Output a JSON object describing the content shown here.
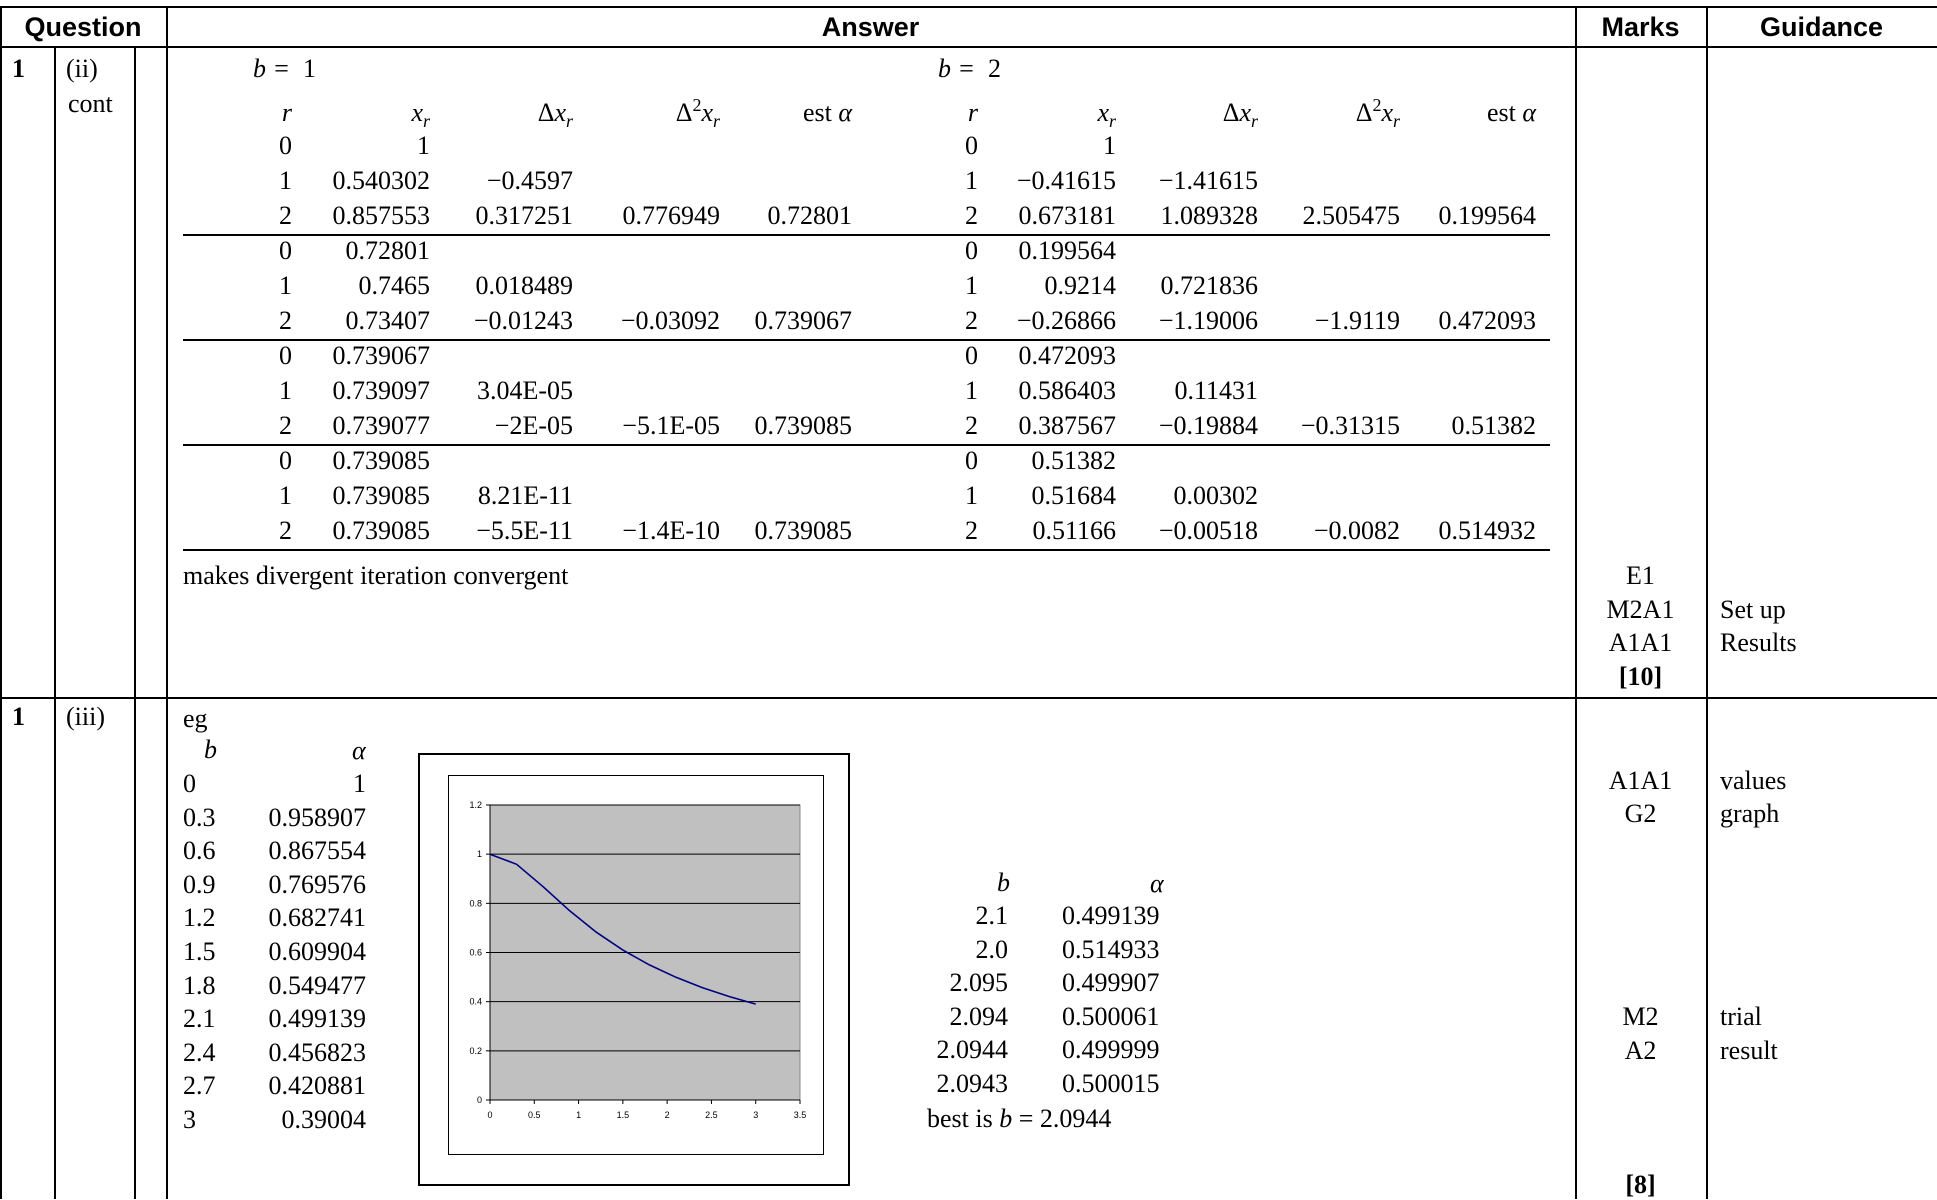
{
  "headers": {
    "question": "Question",
    "answer": "Answer",
    "marks": "Marks",
    "guidance": "Guidance"
  },
  "part_ii": {
    "qnum": "1",
    "part": "(ii)",
    "cont": "cont",
    "left": {
      "b_label": "b =",
      "b_value": "1",
      "cols": [
        "r",
        "x",
        "Δx",
        "Δ2x",
        "est α"
      ],
      "blocks": [
        [
          [
            "0",
            "1",
            "",
            "",
            ""
          ],
          [
            "1",
            "0.540302",
            "−0.4597",
            "",
            ""
          ],
          [
            "2",
            "0.857553",
            "0.317251",
            "0.776949",
            "0.72801"
          ]
        ],
        [
          [
            "0",
            "0.72801",
            "",
            "",
            ""
          ],
          [
            "1",
            "0.7465",
            "0.018489",
            "",
            ""
          ],
          [
            "2",
            "0.73407",
            "−0.01243",
            "−0.03092",
            "0.739067"
          ]
        ],
        [
          [
            "0",
            "0.739067",
            "",
            "",
            ""
          ],
          [
            "1",
            "0.739097",
            "3.04E-05",
            "",
            ""
          ],
          [
            "2",
            "0.739077",
            "−2E-05",
            "−5.1E-05",
            "0.739085"
          ]
        ],
        [
          [
            "0",
            "0.739085",
            "",
            "",
            ""
          ],
          [
            "1",
            "0.739085",
            "8.21E-11",
            "",
            ""
          ],
          [
            "2",
            "0.739085",
            "−5.5E-11",
            "−1.4E-10",
            "0.739085"
          ]
        ]
      ]
    },
    "right": {
      "b_label": "b =",
      "b_value": "2",
      "blocks": [
        [
          [
            "0",
            "1",
            "",
            "",
            ""
          ],
          [
            "1",
            "−0.41615",
            "−1.41615",
            "",
            ""
          ],
          [
            "2",
            "0.673181",
            "1.089328",
            "2.505475",
            "0.199564"
          ]
        ],
        [
          [
            "0",
            "0.199564",
            "",
            "",
            ""
          ],
          [
            "1",
            "0.9214",
            "0.721836",
            "",
            ""
          ],
          [
            "2",
            "−0.26866",
            "−1.19006",
            "−1.9119",
            "0.472093"
          ]
        ],
        [
          [
            "0",
            "0.472093",
            "",
            "",
            ""
          ],
          [
            "1",
            "0.586403",
            "0.11431",
            "",
            ""
          ],
          [
            "2",
            "0.387567",
            "−0.19884",
            "−0.31315",
            "0.51382"
          ]
        ],
        [
          [
            "0",
            "0.51382",
            "",
            "",
            ""
          ],
          [
            "1",
            "0.51684",
            "0.00302",
            "",
            ""
          ],
          [
            "2",
            "0.51166",
            "−0.00518",
            "−0.0082",
            "0.514932"
          ]
        ]
      ]
    },
    "note": "makes divergent iteration convergent",
    "marks": [
      "E1",
      "M2A1",
      "A1A1",
      "[10]"
    ],
    "guidance": [
      "Set up",
      "Results"
    ]
  },
  "part_iii": {
    "qnum": "1",
    "part": "(iii)",
    "eg": "eg",
    "col_b": "b",
    "col_alpha": "α",
    "table": [
      [
        "0",
        "1"
      ],
      [
        "0.3",
        "0.958907"
      ],
      [
        "0.6",
        "0.867554"
      ],
      [
        "0.9",
        "0.769576"
      ],
      [
        "1.2",
        "0.682741"
      ],
      [
        "1.5",
        "0.609904"
      ],
      [
        "1.8",
        "0.549477"
      ],
      [
        "2.1",
        "0.499139"
      ],
      [
        "2.4",
        "0.456823"
      ],
      [
        "2.7",
        "0.420881"
      ],
      [
        "3",
        "0.39004"
      ]
    ],
    "trial_table": [
      [
        "2.1",
        "0.499139"
      ],
      [
        "2.0",
        "0.514933"
      ],
      [
        "2.095",
        "0.499907"
      ],
      [
        "2.094",
        "0.500061"
      ],
      [
        "2.0944",
        "0.499999"
      ],
      [
        "2.0943",
        "0.500015"
      ]
    ],
    "best_prefix": "best is",
    "best_b": "b",
    "best_suffix": "= 2.0944",
    "marks_top": [
      "A1A1",
      "G2"
    ],
    "guidance_top": [
      "values",
      "graph"
    ],
    "marks_mid": [
      "M2",
      "A2"
    ],
    "guidance_mid": [
      "trial",
      "result"
    ],
    "marks_total": "[8]"
  },
  "chart_data": {
    "type": "line",
    "x": [
      0,
      0.3,
      0.6,
      0.9,
      1.2,
      1.5,
      1.8,
      2.1,
      2.4,
      2.7,
      3
    ],
    "y": [
      1,
      0.958907,
      0.867554,
      0.769576,
      0.682741,
      0.609904,
      0.549477,
      0.499139,
      0.456823,
      0.420881,
      0.39004
    ],
    "xlim": [
      0,
      3.5
    ],
    "ylim": [
      0,
      1.2
    ],
    "xticks": [
      "0",
      "0.5",
      "1",
      "1.5",
      "2",
      "2.5",
      "3",
      "3.5"
    ],
    "yticks": [
      "0",
      "0.2",
      "0.4",
      "0.6",
      "0.8",
      "1",
      "1.2"
    ],
    "grid": true,
    "colors": {
      "plot_bg": "#c0c0c0",
      "line": "#000080"
    }
  }
}
